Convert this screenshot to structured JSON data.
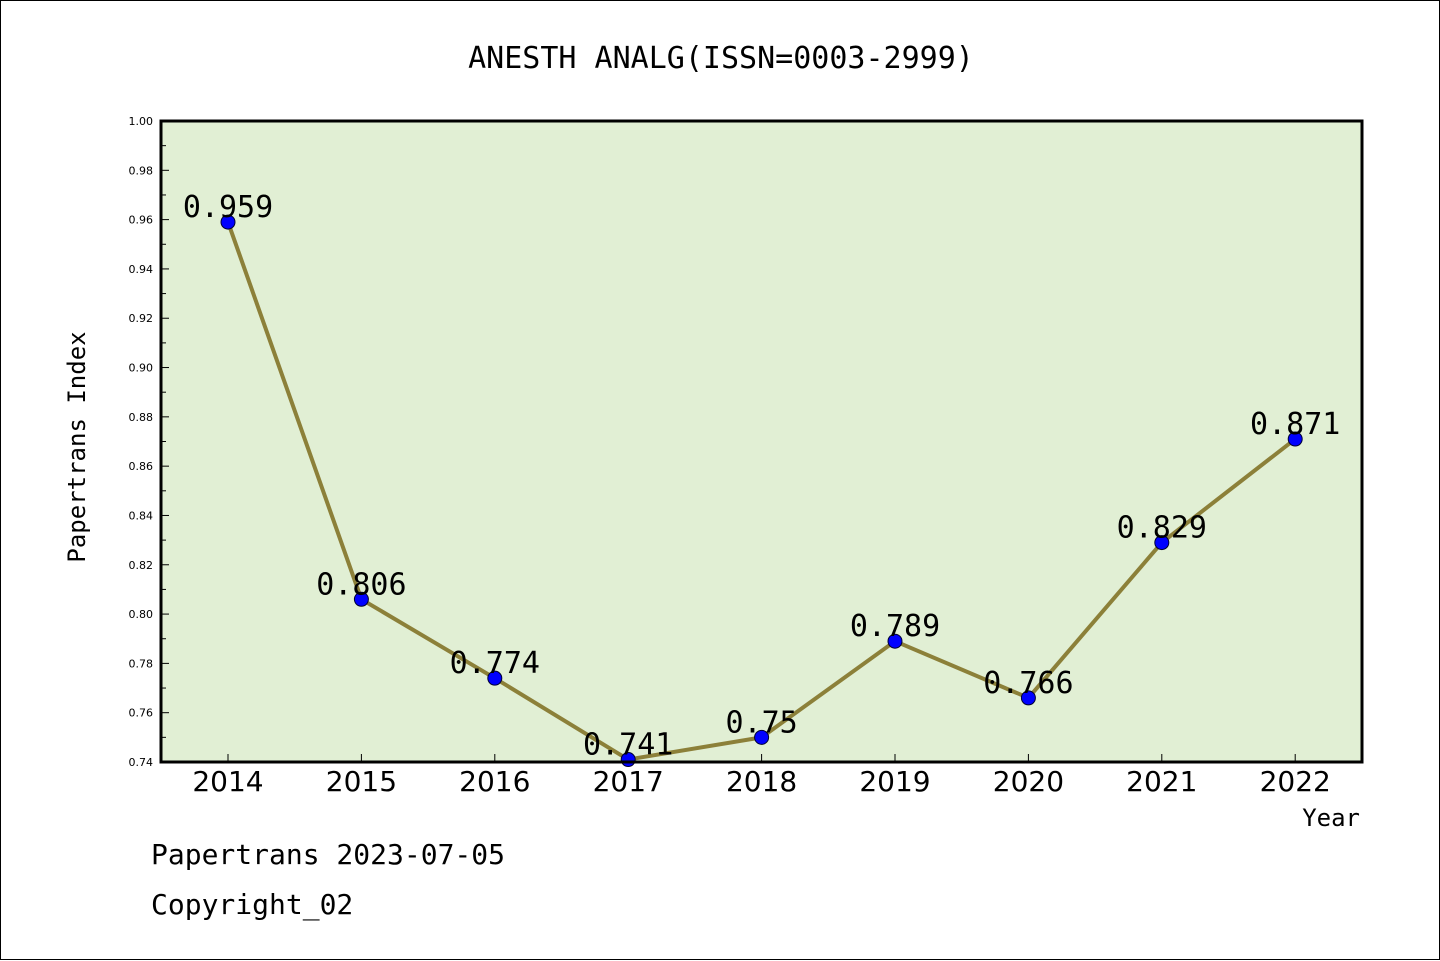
{
  "chart_data": {
    "type": "line",
    "title": "ANESTH ANALG(ISSN=0003-2999)",
    "xlabel": "Year",
    "ylabel": "Papertrans Index",
    "categories": [
      "2014",
      "2015",
      "2016",
      "2017",
      "2018",
      "2019",
      "2020",
      "2021",
      "2022"
    ],
    "values": [
      0.959,
      0.806,
      0.774,
      0.741,
      0.75,
      0.789,
      0.766,
      0.829,
      0.871
    ],
    "data_labels": [
      "0.959",
      "0.806",
      "0.774",
      "0.741",
      "0.75",
      "0.789",
      "0.766",
      "0.829",
      "0.871"
    ],
    "ylim": [
      0.74,
      1.0
    ],
    "yticks": [
      "0.74",
      "0.76",
      "0.78",
      "0.80",
      "0.82",
      "0.84",
      "0.86",
      "0.88",
      "0.90",
      "0.92",
      "0.94",
      "0.96",
      "0.98",
      "1.00"
    ],
    "grid": false,
    "colors": {
      "plot_background": "#e1efd4",
      "line": "#8c8039",
      "marker": "#0000ff"
    }
  },
  "footer": {
    "line1": "Papertrans 2023-07-05",
    "line2": "Copyright_02"
  }
}
